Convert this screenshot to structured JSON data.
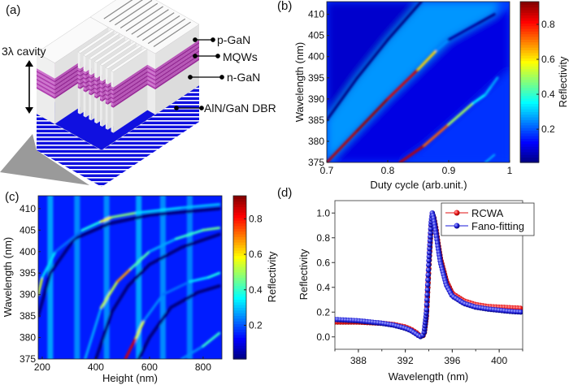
{
  "panel_a": {
    "label": "(a)",
    "cavity_label": "3λ cavity",
    "layers": [
      "p-GaN",
      "MQWs",
      "n-GaN",
      "AlN/GaN DBR"
    ],
    "colors": {
      "gan": "#f2f2f2",
      "mqw": "#b040b0",
      "dbr": "#1010e0",
      "shadow": "#9a9a9a"
    }
  },
  "chart_data": [
    {
      "panel_label": "(b)",
      "type": "heatmap",
      "xlabel": "Duty cycle (arb.unit.)",
      "ylabel": "Wavelength (nm)",
      "xlim": [
        0.7,
        1.0
      ],
      "ylim": [
        375,
        413
      ],
      "xticks": [
        "0.7",
        "0.8",
        "0.9",
        "1"
      ],
      "xtick_values": [
        0.7,
        0.8,
        0.9,
        1.0
      ],
      "yticks": [
        "375",
        "380",
        "385",
        "390",
        "395",
        "400",
        "405",
        "410"
      ],
      "ytick_values": [
        375,
        380,
        385,
        390,
        395,
        400,
        405,
        410
      ],
      "colorbar": {
        "label": "Reflectivity",
        "range": [
          0.01,
          0.93
        ],
        "ticks": [
          "0.2",
          "0.4",
          "0.6",
          "0.8"
        ],
        "tick_values": [
          0.2,
          0.4,
          0.6,
          0.8
        ],
        "colormap": "jet"
      },
      "background": 0.18,
      "regions": [
        {
          "value": 0.08,
          "points": [
            [
              0.7,
              385
            ],
            [
              0.75,
              395
            ],
            [
              0.8,
              404
            ],
            [
              0.855,
              413
            ],
            [
              0.7,
              413
            ]
          ]
        },
        {
          "value": 0.26,
          "points": [
            [
              0.7,
              375
            ],
            [
              0.7,
              385
            ],
            [
              0.75,
              395
            ],
            [
              0.8,
              404
            ],
            [
              0.855,
              413
            ],
            [
              0.985,
              413
            ],
            [
              0.975,
              410
            ],
            [
              0.9,
              404
            ],
            [
              0.85,
              397
            ],
            [
              0.8,
              390
            ],
            [
              0.75,
              382.5
            ]
          ]
        },
        {
          "value": 0.1,
          "points": [
            [
              0.7,
              375
            ],
            [
              0.75,
              382.5
            ],
            [
              0.8,
              390
            ],
            [
              0.85,
              397
            ],
            [
              0.9,
              404
            ],
            [
              0.975,
              410
            ],
            [
              1,
              411
            ],
            [
              1,
              375
            ]
          ]
        },
        {
          "value": 0.17,
          "points": [
            [
              0.82,
              375
            ],
            [
              0.86,
              379
            ],
            [
              0.9,
              384
            ],
            [
              0.94,
              389
            ],
            [
              0.97,
              393
            ],
            [
              1,
              397
            ],
            [
              1,
              375
            ]
          ]
        }
      ],
      "ridges": [
        {
          "width": 3,
          "points": [
            [
              0.7,
              385,
              0.0
            ],
            [
              0.75,
              395,
              0.0
            ],
            [
              0.8,
              404,
              0.0
            ],
            [
              0.855,
              413,
              0.0
            ]
          ]
        },
        {
          "width": 3,
          "points": [
            [
              0.7,
              375,
              0.85
            ],
            [
              0.75,
              382.5,
              0.9
            ],
            [
              0.8,
              390,
              0.9
            ],
            [
              0.85,
              397,
              0.8
            ],
            [
              0.88,
              401.5,
              0.45
            ],
            [
              0.9,
              404,
              0.05
            ],
            [
              0.95,
              408,
              0.02
            ],
            [
              0.975,
              410,
              0.02
            ]
          ]
        },
        {
          "width": 3,
          "points": [
            [
              0.82,
              375,
              0.9
            ],
            [
              0.86,
              379,
              0.85
            ],
            [
              0.9,
              384,
              0.6
            ],
            [
              0.94,
              389,
              0.4
            ],
            [
              0.96,
              391,
              0.3
            ],
            [
              0.97,
              393,
              0.3
            ],
            [
              0.98,
              395,
              0.25
            ]
          ]
        },
        {
          "width": 2,
          "points": [
            [
              0.96,
              375,
              0.3
            ],
            [
              0.975,
              376.8,
              0.3
            ]
          ]
        }
      ]
    },
    {
      "panel_label": "(c)",
      "type": "heatmap",
      "xlabel": "Height (nm)",
      "ylabel": "Wavelength (nm)",
      "xlim": [
        185,
        870
      ],
      "ylim": [
        375,
        413
      ],
      "xticks": [
        "200",
        "400",
        "600",
        "800"
      ],
      "xtick_values": [
        200,
        400,
        600,
        800
      ],
      "yticks": [
        "375",
        "380",
        "385",
        "390",
        "395",
        "400",
        "405",
        "410"
      ],
      "ytick_values": [
        375,
        380,
        385,
        390,
        395,
        400,
        405,
        410
      ],
      "colorbar": {
        "label": "Reflectivity",
        "range": [
          0.01,
          0.93
        ],
        "ticks": [
          "0.2",
          "0.4",
          "0.6",
          "0.8"
        ],
        "tick_values": [
          0.2,
          0.4,
          0.6,
          0.8
        ],
        "colormap": "jet"
      },
      "background": 0.15,
      "regions": [],
      "ridges": [
        {
          "width": 7,
          "points": [
            [
              230,
              375,
              0.27
            ],
            [
              230,
              413,
              0.27
            ]
          ]
        },
        {
          "width": 7,
          "points": [
            [
              330,
              375,
              0.25
            ],
            [
              330,
              413,
              0.25
            ]
          ]
        },
        {
          "width": 7,
          "points": [
            [
              440,
              375,
              0.25
            ],
            [
              440,
              413,
              0.25
            ]
          ]
        },
        {
          "width": 7,
          "points": [
            [
              560,
              375,
              0.27
            ],
            [
              560,
              413,
              0.27
            ]
          ]
        },
        {
          "width": 7,
          "points": [
            [
              650,
              375,
              0.25
            ],
            [
              650,
              413,
              0.25
            ]
          ]
        },
        {
          "width": 7,
          "points": [
            [
              750,
              375,
              0.24
            ],
            [
              750,
              413,
              0.24
            ]
          ]
        },
        {
          "width": 4,
          "points": [
            [
              185,
              385,
              0.0
            ],
            [
              230,
              395,
              0.0
            ],
            [
              320,
              403,
              0.0
            ],
            [
              450,
              406.5,
              0.0
            ],
            [
              600,
              408.5,
              0.0
            ],
            [
              860,
              410,
              0.0
            ]
          ]
        },
        {
          "width": 4,
          "points": [
            [
              400,
              375,
              0.0
            ],
            [
              460,
              386,
              0.0
            ],
            [
              520,
              392,
              0.0
            ],
            [
              600,
              397,
              0.0
            ],
            [
              720,
              401,
              0.0
            ],
            [
              860,
              404,
              0.0
            ]
          ]
        },
        {
          "width": 4,
          "points": [
            [
              560,
              375,
              0.0
            ],
            [
              600,
              380,
              0.0
            ],
            [
              680,
              387,
              0.0
            ],
            [
              780,
              390.5,
              0.0
            ],
            [
              860,
              392,
              0.0
            ]
          ]
        },
        {
          "width": 3,
          "points": [
            [
              185,
              390,
              0.6
            ],
            [
              200,
              394,
              0.5
            ],
            [
              250,
              400,
              0.15
            ],
            [
              350,
              405,
              0.3
            ],
            [
              420,
              407,
              0.45
            ],
            [
              460,
              408,
              0.7
            ],
            [
              550,
              409,
              0.25
            ],
            [
              720,
              410.2,
              0.4
            ],
            [
              860,
              411,
              0.2
            ]
          ]
        },
        {
          "width": 3,
          "points": [
            [
              360,
              375,
              0.25
            ],
            [
              420,
              387,
              0.3
            ],
            [
              480,
              393,
              0.75
            ],
            [
              530,
              396,
              0.6
            ],
            [
              600,
              400,
              0.25
            ],
            [
              700,
              403,
              0.3
            ],
            [
              800,
              405,
              0.5
            ],
            [
              860,
              405.5,
              0.4
            ]
          ]
        },
        {
          "width": 3,
          "points": [
            [
              510,
              375,
              0.9
            ],
            [
              550,
              380,
              0.8
            ],
            [
              580,
              384,
              0.3
            ],
            [
              650,
              390,
              0.2
            ],
            [
              750,
              393,
              0.25
            ],
            [
              820,
              394,
              0.4
            ],
            [
              860,
              395,
              0.35
            ]
          ]
        },
        {
          "width": 3,
          "points": [
            [
              720,
              375,
              0.2
            ],
            [
              800,
              378,
              0.3
            ],
            [
              860,
              381,
              0.5
            ]
          ]
        }
      ]
    },
    {
      "panel_label": "(d)",
      "type": "scatter",
      "xlabel": "Wavelength (nm)",
      "ylabel": "Reflectivity",
      "xlim": [
        386,
        402
      ],
      "ylim": [
        -0.1,
        1.1
      ],
      "xticks": [
        "388",
        "392",
        "396",
        "400"
      ],
      "xtick_values": [
        388,
        392,
        396,
        400
      ],
      "yticks": [
        "0.0",
        "0.2",
        "0.4",
        "0.6",
        "0.8",
        "1.0"
      ],
      "ytick_values": [
        0,
        0.2,
        0.4,
        0.6,
        0.8,
        1.0
      ],
      "legend": "top-right",
      "x": [
        386,
        387,
        388,
        389,
        390,
        391,
        392,
        392.5,
        393,
        393.2,
        393.4,
        393.6,
        393.8,
        394.0,
        394.2,
        394.3,
        394.4,
        394.6,
        394.8,
        395,
        395.5,
        396,
        397,
        398,
        399,
        400,
        401,
        402
      ],
      "series": [
        {
          "name": "RCWA",
          "color": "#e01010",
          "values": [
            0.12,
            0.12,
            0.12,
            0.115,
            0.11,
            0.1,
            0.08,
            0.06,
            0.03,
            0.01,
            0.0,
            0.02,
            0.17,
            0.55,
            0.9,
            0.99,
            0.98,
            0.88,
            0.75,
            0.63,
            0.45,
            0.35,
            0.29,
            0.26,
            0.245,
            0.24,
            0.235,
            0.23
          ]
        },
        {
          "name": "Fano-fitting",
          "color": "#1a1ad8",
          "values": [
            0.14,
            0.135,
            0.13,
            0.12,
            0.11,
            0.095,
            0.07,
            0.05,
            0.02,
            0.005,
            0.0,
            0.03,
            0.2,
            0.6,
            0.92,
            1.0,
            0.97,
            0.85,
            0.72,
            0.6,
            0.42,
            0.33,
            0.27,
            0.24,
            0.225,
            0.215,
            0.205,
            0.2
          ]
        }
      ]
    }
  ]
}
